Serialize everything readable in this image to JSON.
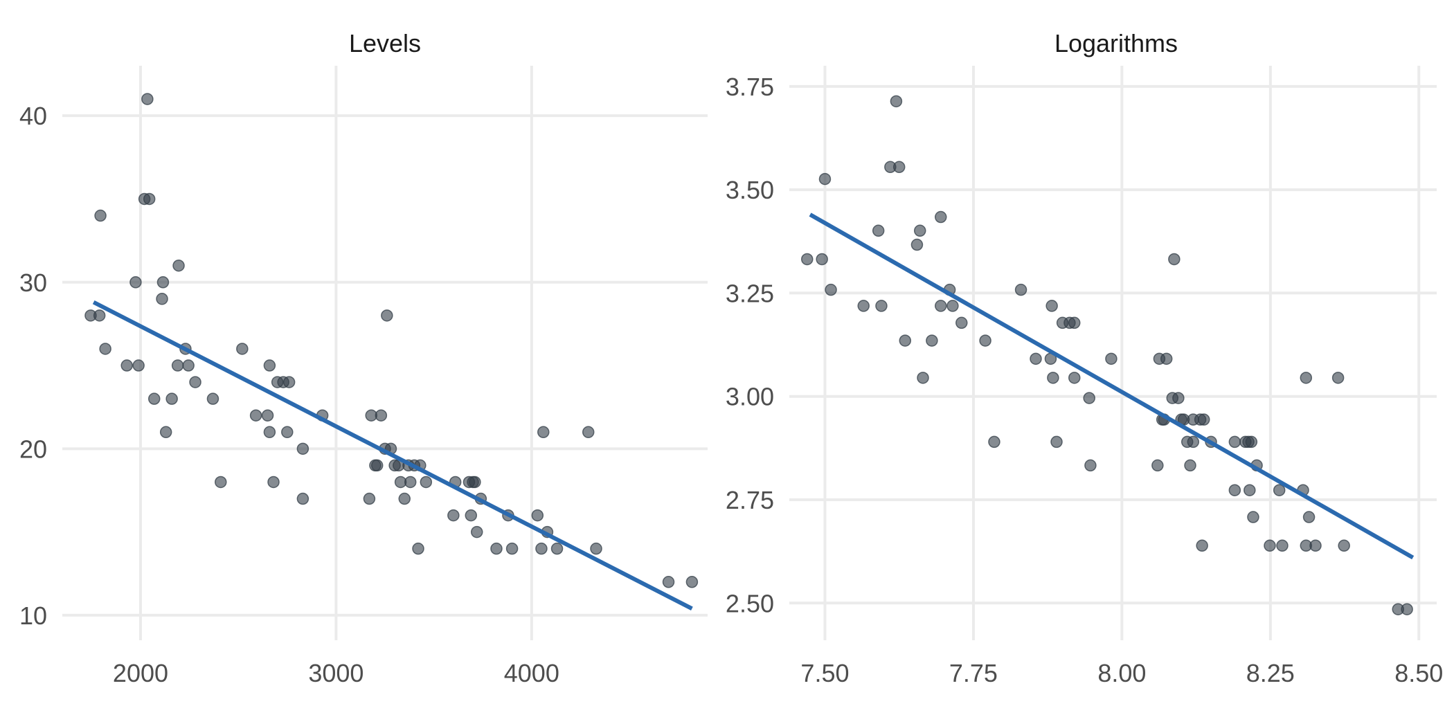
{
  "chart_data": [
    {
      "type": "scatter",
      "title": "Levels",
      "xlabel": "",
      "ylabel": "",
      "xlim": [
        1600,
        4900
      ],
      "ylim": [
        8.5,
        43
      ],
      "xticks": [
        2000,
        3000,
        4000
      ],
      "yticks": [
        10,
        20,
        30,
        40
      ],
      "xtick_labels": [
        "2000",
        "3000",
        "4000"
      ],
      "ytick_labels": [
        "10",
        "20",
        "30",
        "40"
      ],
      "grid": true,
      "point_color": "#333d47",
      "line_color": "#2b6aaf",
      "fit_line": [
        [
          1760,
          28.8
        ],
        [
          4820,
          10.4
        ]
      ],
      "points": [
        [
          1745,
          28
        ],
        [
          1790,
          28
        ],
        [
          1795,
          34
        ],
        [
          1820,
          26
        ],
        [
          1930,
          25
        ],
        [
          1975,
          30
        ],
        [
          1990,
          25
        ],
        [
          2020,
          35
        ],
        [
          2035,
          41
        ],
        [
          2045,
          35
        ],
        [
          2070,
          23
        ],
        [
          2110,
          29
        ],
        [
          2115,
          30
        ],
        [
          2130,
          21
        ],
        [
          2160,
          23
        ],
        [
          2190,
          25
        ],
        [
          2195,
          31
        ],
        [
          2230,
          26
        ],
        [
          2245,
          25
        ],
        [
          2280,
          24
        ],
        [
          2370,
          23
        ],
        [
          2410,
          18
        ],
        [
          2520,
          26
        ],
        [
          2590,
          22
        ],
        [
          2650,
          22
        ],
        [
          2660,
          21
        ],
        [
          2660,
          25
        ],
        [
          2680,
          18
        ],
        [
          2700,
          24
        ],
        [
          2730,
          24
        ],
        [
          2750,
          21
        ],
        [
          2760,
          24
        ],
        [
          2830,
          20
        ],
        [
          2830,
          17
        ],
        [
          2930,
          22
        ],
        [
          3170,
          17
        ],
        [
          3180,
          22
        ],
        [
          3200,
          19
        ],
        [
          3210,
          19
        ],
        [
          3230,
          22
        ],
        [
          3250,
          20
        ],
        [
          3260,
          28
        ],
        [
          3280,
          20
        ],
        [
          3300,
          19
        ],
        [
          3320,
          19
        ],
        [
          3330,
          18
        ],
        [
          3350,
          17
        ],
        [
          3370,
          19
        ],
        [
          3380,
          18
        ],
        [
          3400,
          19
        ],
        [
          3420,
          14
        ],
        [
          3430,
          19
        ],
        [
          3460,
          18
        ],
        [
          3600,
          16
        ],
        [
          3610,
          18
        ],
        [
          3680,
          18
        ],
        [
          3690,
          16
        ],
        [
          3700,
          18
        ],
        [
          3710,
          18
        ],
        [
          3720,
          15
        ],
        [
          3740,
          17
        ],
        [
          3820,
          14
        ],
        [
          3880,
          16
        ],
        [
          3900,
          14
        ],
        [
          4030,
          16
        ],
        [
          4050,
          14
        ],
        [
          4060,
          21
        ],
        [
          4080,
          15
        ],
        [
          4130,
          14
        ],
        [
          4290,
          21
        ],
        [
          4330,
          14
        ],
        [
          4700,
          12
        ],
        [
          4820,
          12
        ]
      ]
    },
    {
      "type": "scatter",
      "title": "Logarithms",
      "xlabel": "",
      "ylabel": "",
      "xlim": [
        7.44,
        8.53
      ],
      "ylim": [
        2.41,
        3.8
      ],
      "xticks": [
        7.5,
        7.75,
        8.0,
        8.25,
        8.5
      ],
      "yticks": [
        2.5,
        2.75,
        3.0,
        3.25,
        3.5,
        3.75
      ],
      "xtick_labels": [
        "7.50",
        "7.75",
        "8.00",
        "8.25",
        "8.50"
      ],
      "ytick_labels": [
        "2.50",
        "2.75",
        "3.00",
        "3.25",
        "3.50",
        "3.75"
      ],
      "grid": true,
      "point_color": "#333d47",
      "line_color": "#2b6aaf",
      "fit_line": [
        [
          7.475,
          3.44
        ],
        [
          8.49,
          2.61
        ]
      ],
      "points": [
        [
          7.47,
          3.332
        ],
        [
          7.495,
          3.332
        ],
        [
          7.5,
          3.526
        ],
        [
          7.51,
          3.258
        ],
        [
          7.565,
          3.219
        ],
        [
          7.59,
          3.401
        ],
        [
          7.595,
          3.219
        ],
        [
          7.61,
          3.555
        ],
        [
          7.62,
          3.714
        ],
        [
          7.625,
          3.555
        ],
        [
          7.635,
          3.135
        ],
        [
          7.655,
          3.367
        ],
        [
          7.66,
          3.401
        ],
        [
          7.665,
          3.045
        ],
        [
          7.68,
          3.135
        ],
        [
          7.695,
          3.434
        ],
        [
          7.695,
          3.219
        ],
        [
          7.71,
          3.258
        ],
        [
          7.715,
          3.219
        ],
        [
          7.73,
          3.178
        ],
        [
          7.77,
          3.135
        ],
        [
          7.785,
          2.89
        ],
        [
          7.83,
          3.258
        ],
        [
          7.855,
          3.091
        ],
        [
          7.88,
          3.091
        ],
        [
          7.882,
          3.219
        ],
        [
          7.884,
          3.045
        ],
        [
          7.89,
          2.89
        ],
        [
          7.9,
          3.178
        ],
        [
          7.912,
          3.178
        ],
        [
          7.92,
          3.178
        ],
        [
          7.92,
          3.045
        ],
        [
          7.945,
          2.996
        ],
        [
          7.947,
          2.833
        ],
        [
          7.982,
          3.091
        ],
        [
          8.06,
          2.833
        ],
        [
          8.063,
          3.091
        ],
        [
          8.068,
          2.944
        ],
        [
          8.071,
          2.944
        ],
        [
          8.075,
          3.091
        ],
        [
          8.085,
          2.996
        ],
        [
          8.088,
          3.332
        ],
        [
          8.095,
          2.996
        ],
        [
          8.1,
          2.944
        ],
        [
          8.104,
          2.944
        ],
        [
          8.11,
          2.89
        ],
        [
          8.115,
          2.833
        ],
        [
          8.12,
          2.89
        ],
        [
          8.12,
          2.944
        ],
        [
          8.132,
          2.944
        ],
        [
          8.135,
          2.639
        ],
        [
          8.138,
          2.944
        ],
        [
          8.15,
          2.89
        ],
        [
          8.19,
          2.89
        ],
        [
          8.19,
          2.773
        ],
        [
          8.208,
          2.89
        ],
        [
          8.213,
          2.89
        ],
        [
          8.215,
          2.773
        ],
        [
          8.218,
          2.89
        ],
        [
          8.221,
          2.708
        ],
        [
          8.227,
          2.833
        ],
        [
          8.249,
          2.639
        ],
        [
          8.265,
          2.773
        ],
        [
          8.27,
          2.639
        ],
        [
          8.305,
          2.773
        ],
        [
          8.31,
          3.045
        ],
        [
          8.31,
          2.639
        ],
        [
          8.315,
          2.708
        ],
        [
          8.326,
          2.639
        ],
        [
          8.364,
          3.045
        ],
        [
          8.374,
          2.639
        ],
        [
          8.465,
          2.485
        ],
        [
          8.48,
          2.485
        ]
      ]
    }
  ]
}
